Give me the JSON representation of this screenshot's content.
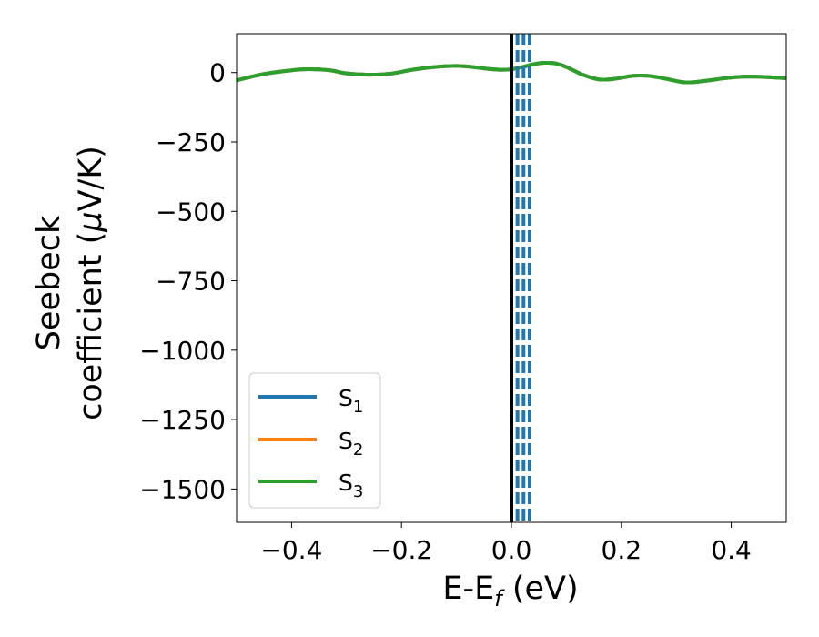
{
  "chart_data": {
    "type": "line",
    "xlabel": "E-E",
    "xlabel_sub": "f",
    "xlabel_unit": " (eV)",
    "ylabel_line1": "Seebeck",
    "ylabel_line2_pre": "coefficient  (",
    "ylabel_line2_mu": "μ",
    "ylabel_line2_post": "V/K)",
    "xlim": [
      -0.5,
      0.5
    ],
    "ylim": [
      -1620,
      140
    ],
    "x_ticks": [
      -0.4,
      -0.2,
      0.0,
      0.2,
      0.4
    ],
    "x_tick_labels": [
      "−0.4",
      "−0.2",
      "0.0",
      "0.2",
      "0.4"
    ],
    "y_ticks": [
      0,
      -250,
      -500,
      -750,
      -1000,
      -1250,
      -1500
    ],
    "y_tick_labels": [
      "0",
      "−250",
      "−500",
      "−750",
      "−1000",
      "−1250",
      "−1500"
    ],
    "fermi_line_x": 0.0,
    "dashed_lines_x": [
      0.011,
      0.022,
      0.033
    ],
    "legend_position": "lower-left",
    "series": [
      {
        "name": "S",
        "sub": "1",
        "color": "#1f77b4",
        "x": [
          -0.5,
          -0.45,
          -0.4,
          -0.37,
          -0.33,
          -0.3,
          -0.26,
          -0.22,
          -0.18,
          -0.14,
          -0.1,
          -0.07,
          -0.04,
          -0.02,
          0.0,
          0.02,
          0.04,
          0.06,
          0.08,
          0.1,
          0.13,
          0.16,
          0.19,
          0.22,
          0.25,
          0.28,
          0.31,
          0.33,
          0.36,
          0.39,
          0.42,
          0.45,
          0.48,
          0.5
        ],
        "y": [
          -28,
          -5,
          8,
          12,
          8,
          -3,
          -8,
          -4,
          10,
          20,
          24,
          20,
          13,
          10,
          12,
          20,
          30,
          35,
          33,
          20,
          -8,
          -25,
          -22,
          -12,
          -12,
          -22,
          -34,
          -35,
          -28,
          -20,
          -15,
          -15,
          -18,
          -20
        ]
      },
      {
        "name": "S",
        "sub": "2",
        "color": "#ff7f0e",
        "x": [
          -0.5,
          -0.45,
          -0.4,
          -0.37,
          -0.33,
          -0.3,
          -0.26,
          -0.22,
          -0.18,
          -0.14,
          -0.1,
          -0.07,
          -0.04,
          -0.02,
          0.0,
          0.02,
          0.04,
          0.06,
          0.08,
          0.1,
          0.13,
          0.16,
          0.19,
          0.22,
          0.25,
          0.28,
          0.31,
          0.33,
          0.36,
          0.39,
          0.42,
          0.45,
          0.48,
          0.5
        ],
        "y": [
          -28,
          -5,
          8,
          12,
          8,
          -3,
          -8,
          -4,
          10,
          20,
          24,
          20,
          13,
          10,
          12,
          20,
          30,
          35,
          33,
          20,
          -8,
          -25,
          -22,
          -12,
          -12,
          -22,
          -34,
          -35,
          -28,
          -20,
          -15,
          -15,
          -18,
          -20
        ]
      },
      {
        "name": "S",
        "sub": "3",
        "color": "#2ca02c",
        "x": [
          -0.5,
          -0.45,
          -0.4,
          -0.37,
          -0.33,
          -0.3,
          -0.26,
          -0.22,
          -0.18,
          -0.14,
          -0.1,
          -0.07,
          -0.04,
          -0.02,
          0.0,
          0.02,
          0.04,
          0.06,
          0.08,
          0.1,
          0.13,
          0.16,
          0.19,
          0.22,
          0.25,
          0.28,
          0.31,
          0.33,
          0.36,
          0.39,
          0.42,
          0.45,
          0.48,
          0.5
        ],
        "y": [
          -28,
          -5,
          8,
          12,
          8,
          -3,
          -8,
          -4,
          10,
          20,
          24,
          20,
          13,
          10,
          12,
          20,
          30,
          35,
          33,
          20,
          -8,
          -25,
          -22,
          -12,
          -12,
          -22,
          -34,
          -35,
          -28,
          -20,
          -15,
          -15,
          -18,
          -20
        ]
      }
    ],
    "colors": {
      "fermi_line": "#000000",
      "dashed_lines": "#1f77b4",
      "axes": "#000000"
    }
  }
}
